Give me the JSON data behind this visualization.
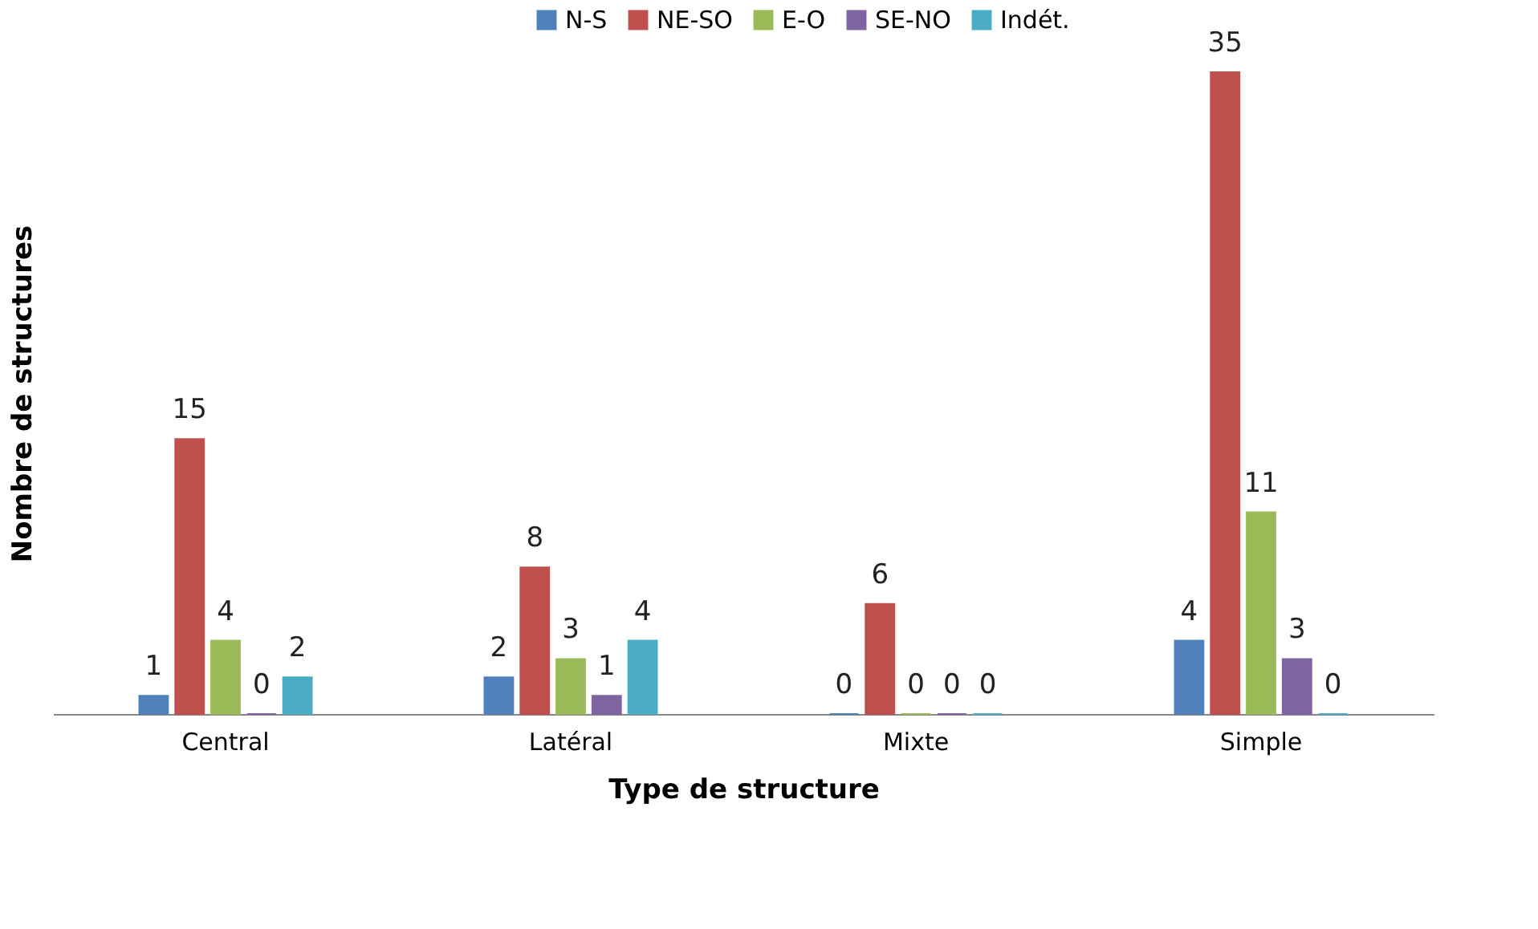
{
  "chart_data": {
    "type": "bar",
    "xlabel": "Type de structure",
    "ylabel": "Nombre de structures",
    "categories": [
      "Central",
      "Latéral",
      "Mixte",
      "Simple"
    ],
    "series": [
      {
        "name": "N-S",
        "color": "#4f81bd",
        "values": [
          1,
          2,
          0,
          4
        ]
      },
      {
        "name": "NE-SO",
        "color": "#c0504d",
        "values": [
          15,
          8,
          6,
          35
        ]
      },
      {
        "name": "E-O",
        "color": "#9bbb59",
        "values": [
          4,
          3,
          0,
          11
        ]
      },
      {
        "name": "SE-NO",
        "color": "#8064a2",
        "values": [
          0,
          1,
          0,
          3
        ]
      },
      {
        "name": "Indét.",
        "color": "#4bacc6",
        "values": [
          2,
          4,
          0,
          0
        ]
      }
    ],
    "data_labels": true,
    "grid": false,
    "legend": "top"
  }
}
